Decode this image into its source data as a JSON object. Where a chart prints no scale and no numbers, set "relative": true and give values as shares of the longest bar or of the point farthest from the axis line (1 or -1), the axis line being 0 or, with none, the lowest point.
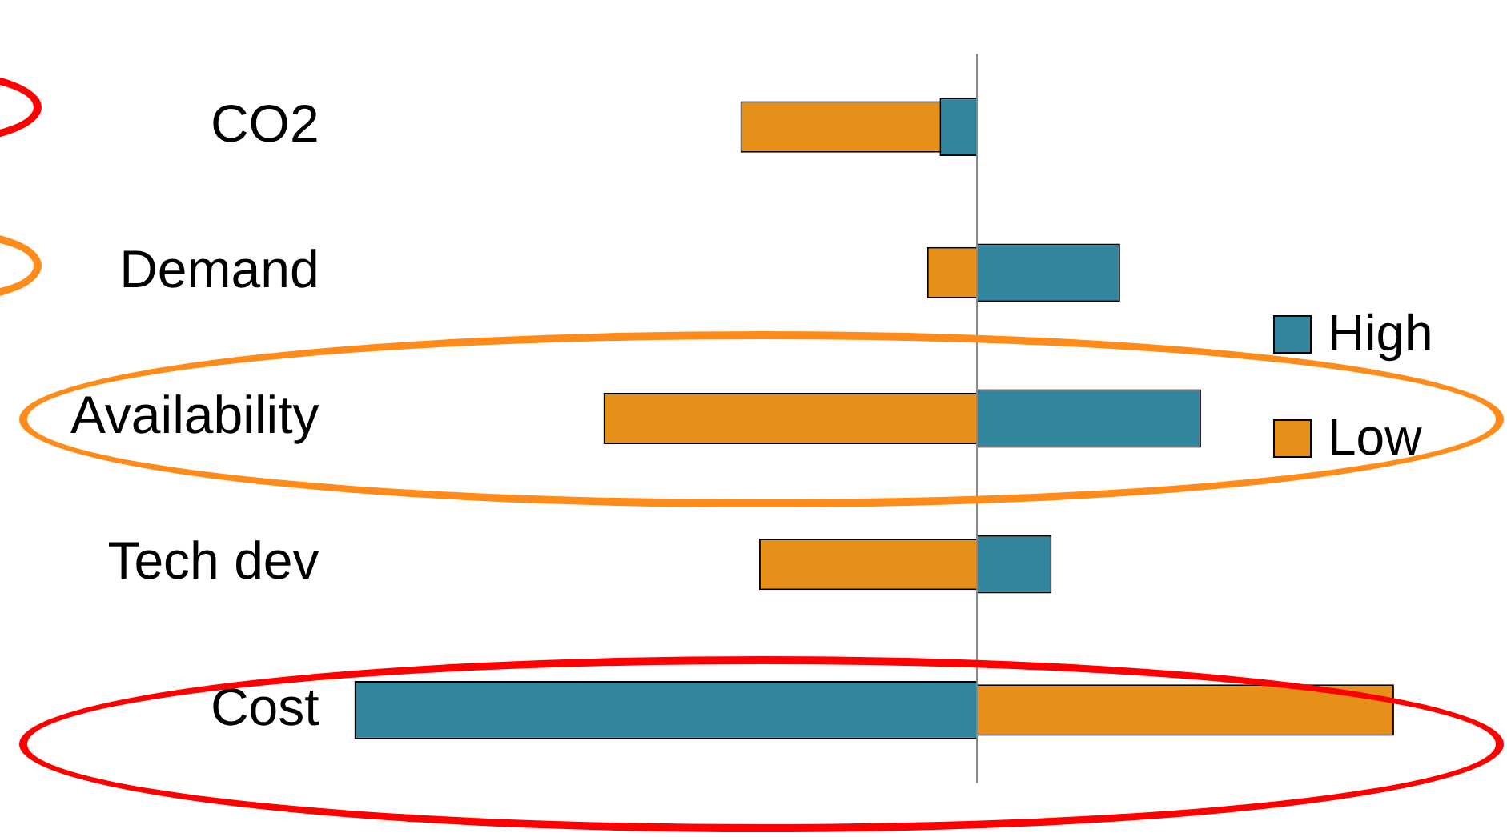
{
  "chart_data": {
    "type": "bar",
    "orientation": "horizontal",
    "relative": true,
    "categories": [
      "CO2",
      "Demand",
      "Availability",
      "Tech dev",
      "Cost"
    ],
    "series": [
      {
        "name": "High",
        "color": "#31859c",
        "values": [
          -0.06,
          0.23,
          0.36,
          0.12,
          -1
        ]
      },
      {
        "name": "Low",
        "color": "#e6901a",
        "values": [
          -0.38,
          -0.08,
          -0.6,
          -0.35,
          0.67
        ]
      }
    ],
    "legend": "right"
  }
}
